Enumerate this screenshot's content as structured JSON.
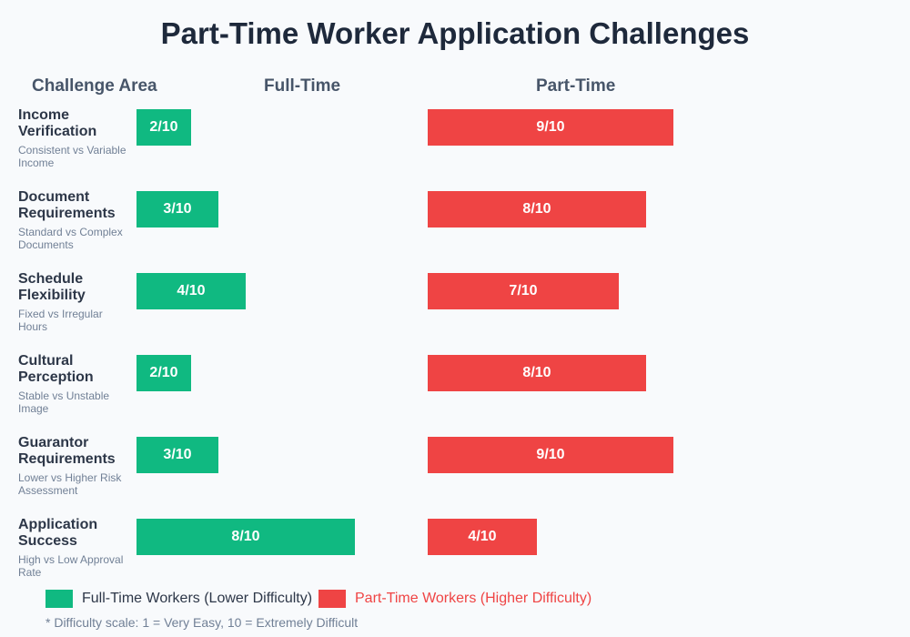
{
  "title": "Part-Time Worker Application Challenges",
  "chart_data": {
    "type": "bar",
    "title": "Part-Time Worker Application Challenges",
    "column_headers": [
      "Challenge Area",
      "Full-Time",
      "Part-Time"
    ],
    "categories": [
      {
        "label": "Income Verification",
        "sub": "Consistent vs Variable Income"
      },
      {
        "label": "Document Requirements",
        "sub": "Standard vs Complex Documents"
      },
      {
        "label": "Schedule Flexibility",
        "sub": "Fixed vs Irregular Hours"
      },
      {
        "label": "Cultural Perception",
        "sub": "Stable vs Unstable Image"
      },
      {
        "label": "Guarantor Requirements",
        "sub": "Lower vs Higher Risk Assessment"
      },
      {
        "label": "Application Success",
        "sub": "High vs Low Approval Rate"
      }
    ],
    "series": [
      {
        "name": "Full-Time Workers (Lower Difficulty)",
        "color": "#10b981",
        "values": [
          2,
          3,
          4,
          2,
          3,
          8
        ]
      },
      {
        "name": "Part-Time Workers (Higher Difficulty)",
        "color": "#ef4444",
        "values": [
          9,
          8,
          7,
          8,
          9,
          4
        ]
      }
    ],
    "xlim": [
      0,
      10
    ],
    "legend_placement": "bottom-left",
    "footnote": "* Difficulty scale: 1 = Very Easy, 10 = Extremely Difficult"
  }
}
